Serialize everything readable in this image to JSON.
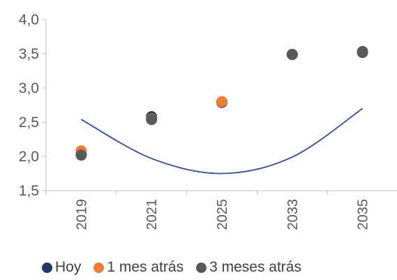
{
  "chart_data": {
    "type": "scatter",
    "categories": [
      "2019",
      "2021",
      "2025",
      "2033",
      "2035"
    ],
    "ylim": [
      1.5,
      4.0
    ],
    "yticks": [
      1.5,
      2.0,
      2.5,
      3.0,
      3.5,
      4.0
    ],
    "ytick_labels": [
      "1,5",
      "2,0",
      "2,5",
      "3,0",
      "3,5",
      "4,0"
    ],
    "grid": false,
    "legend_position": "bottom",
    "series": [
      {
        "name": "Hoy",
        "color": "#1f3864",
        "values": [
          2.03,
          2.58,
          2.79,
          3.49,
          3.53
        ]
      },
      {
        "name": "1 mes atrás",
        "color": "#ed7d31",
        "values": [
          2.08,
          2.55,
          2.8,
          3.49,
          3.52
        ]
      },
      {
        "name": "3 meses atrás",
        "color": "#595959",
        "values": [
          2.02,
          2.54,
          null,
          3.49,
          3.52
        ]
      }
    ],
    "trendline": {
      "color": "#2e4aad",
      "values": [
        2.54,
        1.97,
        1.75,
        1.99,
        2.7
      ]
    }
  }
}
